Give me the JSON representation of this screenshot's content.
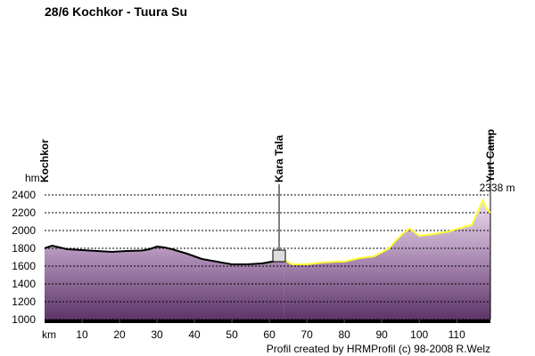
{
  "chart_data": {
    "type": "line",
    "title": "28/6 Kochkor - Tuura Su",
    "y_label": "hm",
    "x_label": "km",
    "footer": "Profil created by HRMProfil (c) 98-2008 R.Welz",
    "xlim": [
      0,
      119
    ],
    "xticks": [
      10,
      20,
      30,
      40,
      50,
      60,
      70,
      80,
      90,
      100,
      110
    ],
    "ylim": [
      1000,
      2400
    ],
    "yticks": [
      1000,
      1200,
      1400,
      1600,
      1800,
      2000,
      2200,
      2400
    ],
    "grid": true,
    "series": [
      {
        "color": "#000000",
        "x": [
          0,
          2,
          4,
          6,
          10,
          14,
          18,
          22,
          26,
          28,
          30,
          32,
          34,
          38,
          42,
          46,
          50,
          54,
          58,
          62,
          64
        ],
        "values": [
          1800,
          1830,
          1810,
          1790,
          1780,
          1770,
          1760,
          1770,
          1775,
          1790,
          1820,
          1810,
          1790,
          1740,
          1680,
          1650,
          1620,
          1620,
          1630,
          1660,
          1670
        ]
      },
      {
        "color": "#ffff33",
        "x": [
          64,
          66,
          70,
          74,
          78,
          80,
          84,
          88,
          92,
          94,
          96,
          97.5,
          100,
          104,
          108,
          112,
          114,
          116,
          117,
          118,
          119
        ],
        "values": [
          1670,
          1620,
          1620,
          1640,
          1650,
          1650,
          1690,
          1710,
          1800,
          1900,
          1980,
          2020,
          1940,
          1960,
          1990,
          2040,
          2060,
          2250,
          2338,
          2240,
          2200
        ]
      }
    ],
    "places": [
      {
        "x": 0,
        "label": "Kochkor"
      },
      {
        "x": 62.6,
        "label": "Kara Tala"
      },
      {
        "x": 119,
        "label": "Yurt Camp"
      }
    ],
    "max_label": {
      "x": 117,
      "value": 2338,
      "label": "2338 m"
    }
  }
}
